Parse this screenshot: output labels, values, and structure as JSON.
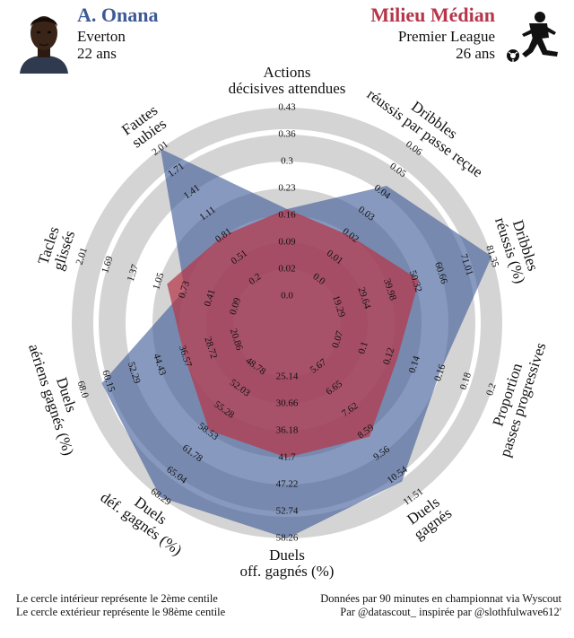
{
  "header": {
    "player_name": "A. Onana",
    "club": "Everton",
    "age": "22 ans",
    "comparison": "Milieu Médian",
    "league": "Premier League",
    "comparison_age": "26 ans"
  },
  "footer": {
    "left_line1": "Le cercle intérieur représente le 2ème centile",
    "left_line2": "Le cercle extérieur représente le 98ème centile",
    "right_line1": "Données par 90 minutes en championnat via Wyscout",
    "right_line2": "Par @datascout_ inspirée par @slothfulwave612'"
  },
  "colors": {
    "player": "#3d5a96",
    "comparison": "#b5364a",
    "rings": "#d4d4d4"
  },
  "icons": {
    "avatar": "player-photo",
    "footballer": "footballer-kicking-icon"
  },
  "chart_data": {
    "type": "radar",
    "grid": "concentric rings",
    "axes": [
      {
        "label": [
          "Actions",
          "décisives attendues"
        ],
        "ticks": [
          "0.0",
          "0.02",
          "0.09",
          "0.16",
          "0.23",
          "0.3",
          "0.36",
          "0.43"
        ],
        "range": [
          0,
          0.43
        ]
      },
      {
        "label": [
          "Dribbles",
          "réussis par passe reçue"
        ],
        "ticks": [
          "0.0",
          "0.01",
          "0.02",
          "0.03",
          "0.04",
          "0.05",
          "0.06"
        ],
        "range": [
          0,
          0.06
        ]
      },
      {
        "label": [
          "Dribbles",
          "réussis (%)"
        ],
        "ticks": [
          "19.29",
          "29.64",
          "39.98",
          "50.32",
          "60.66",
          "71.01",
          "81.35"
        ],
        "range": [
          19.29,
          81.35
        ]
      },
      {
        "label": [
          "Proportion",
          "passes progressives"
        ],
        "ticks": [
          "0.07",
          "0.1",
          "0.12",
          "0.14",
          "0.16",
          "0.18",
          "0.2"
        ],
        "range": [
          0.07,
          0.2
        ]
      },
      {
        "label": [
          "Duels",
          "gagnés"
        ],
        "ticks": [
          "5.67",
          "6.65",
          "7.62",
          "8.59",
          "9.56",
          "10.54",
          "11.51"
        ],
        "range": [
          5.67,
          11.51
        ]
      },
      {
        "label": [
          "Duels",
          "off. gagnés (%)"
        ],
        "ticks": [
          "25.14",
          "30.66",
          "36.18",
          "41.7",
          "47.22",
          "52.74",
          "58.26"
        ],
        "range": [
          25.14,
          58.26
        ]
      },
      {
        "label": [
          "Duels",
          "déf. gagnés (%)"
        ],
        "ticks": [
          "48.78",
          "52.03",
          "55.28",
          "58.53",
          "61.78",
          "65.04",
          "68.29"
        ],
        "range": [
          48.78,
          68.29
        ]
      },
      {
        "label": [
          "Duels",
          "aériens gagnés (%)"
        ],
        "ticks": [
          "20.86",
          "28.72",
          "36.57",
          "44.43",
          "52.29",
          "60.15",
          "68.0"
        ],
        "range": [
          20.86,
          68.0
        ]
      },
      {
        "label": [
          "Tacles",
          "glissés"
        ],
        "ticks": [
          "0.09",
          "0.41",
          "0.73",
          "1.05",
          "1.37",
          "1.69",
          "2.01"
        ],
        "range": [
          0.09,
          2.01
        ]
      },
      {
        "label": [
          "Fautes",
          "subies"
        ],
        "ticks": [
          "0.2",
          "0.51",
          "0.81",
          "1.11",
          "1.41",
          "1.71",
          "2.01"
        ],
        "range": [
          0.2,
          2.01
        ]
      }
    ],
    "series": [
      {
        "name": "A. Onana",
        "values": [
          0.16,
          0.043,
          81.35,
          0.156,
          10.8,
          58.26,
          68.29,
          62.0,
          0.73,
          2.01
        ]
      },
      {
        "name": "Milieu Médian",
        "values": [
          0.16,
          0.02,
          52.0,
          0.12,
          8.8,
          41.7,
          58.3,
          36.6,
          0.95,
          0.81
        ]
      }
    ]
  }
}
